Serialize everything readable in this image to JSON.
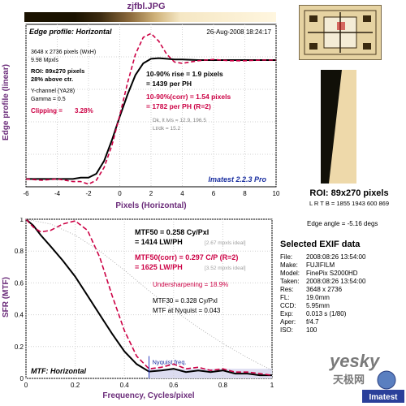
{
  "title": "zjfbl.JPG",
  "edge_profile": {
    "panel_title": "Edge profile: Horizontal",
    "timestamp": "26-Aug-2008 18:24:17",
    "info": [
      "3648 x 2736 pixels (WxH)",
      "9.98 Mpxls"
    ],
    "roi_info": [
      "ROI: 89x270 pixels",
      "28% above ctr."
    ],
    "channel_info": [
      "Y-channel  (YA28)",
      "Gamma = 0.5"
    ],
    "clipping_label": "Clipping =",
    "clipping_value": "3.28%",
    "rise_text": "10-90% rise = 1.9 pixels",
    "rise_per_ph": "= 1439 per PH",
    "corr_text": "10-90%(corr) = 1.54 pixels",
    "corr_per_ph": "= 1782 per PH   (R=2)",
    "dk_text": "Dk, lt lvls = 12.9, 196.5",
    "ltdk_text": "Lt/dk = 15.2",
    "version": "Imatest 2.2.3 Pro",
    "ylabel": "Edge profile (linear)",
    "xlabel": "Pixels (Horizontal)"
  },
  "mtf": {
    "panel_title": "MTF: Horizontal",
    "mtf50_text": "MTF50 = 0.258 Cy/Pxl",
    "mtf50_lw": "= 1414 LW/PH",
    "mtf50_ideal": "[2.67 mpxls ideal]",
    "mtf50c_text": "MTF50(corr) = 0.297 C/P   (R=2)",
    "mtf50c_lw": "= 1625 LW/PH",
    "mtf50c_ideal": "[3.52 mpxls ideal]",
    "undersharp": "Undersharpening = 18.9%",
    "mtf30": "MTF30 = 0.328 Cy/Pxl",
    "mtf_nyq": "MTF at Nyquist = 0.043",
    "nyquist_label": "Nyquist freq.",
    "ylabel": "SFR (MTF)",
    "xlabel": "Frequency, Cycles/pixel"
  },
  "roi": {
    "caption": "ROI: 89x270 pixels",
    "coords": "L R T B = 1855 1943  600 869"
  },
  "edge_angle": "Edge angle = -5.16 degs",
  "exif": {
    "title": "Selected EXIF data",
    "rows": [
      {
        "k": "File:",
        "v": "2008:08:26 13:54:00"
      },
      {
        "k": "Make:",
        "v": "FUJIFILM"
      },
      {
        "k": "Model:",
        "v": "FinePix S2000HD"
      },
      {
        "k": "Taken:",
        "v": "2008:08:26 13:54:00"
      },
      {
        "k": "Res:",
        "v": "3648 x 2736"
      },
      {
        "k": "FL:",
        "v": "19.0mm"
      },
      {
        "k": "CCD:",
        "v": "5.95mm"
      },
      {
        "k": "Exp:",
        "v": "0.013 s  (1/80)"
      },
      {
        "k": "Aper:",
        "v": "f/4.7"
      },
      {
        "k": "ISO:",
        "v": "100"
      }
    ]
  },
  "watermark": {
    "text": "yesky",
    "sub": "天极网",
    "brand": "Imatest"
  },
  "colors": {
    "accent": "#6b2c7a",
    "corr_red": "#cc0044",
    "plot_bg": "#ffffff",
    "nyq_fill": "#dcdcf0"
  },
  "chart_data": [
    {
      "type": "line",
      "title": "Edge profile: Horizontal",
      "xlabel": "Pixels (Horizontal)",
      "ylabel": "Edge profile (linear)",
      "xlim": [
        -6,
        10
      ],
      "ylim": [
        0,
        1.25
      ],
      "xticks": [
        -6,
        -4,
        -2,
        0,
        2,
        4,
        6,
        8,
        10
      ],
      "series": [
        {
          "x": [
            -6,
            -5,
            -4,
            -3,
            -2.5,
            -2,
            -1.5,
            -1,
            -0.5,
            0,
            0.5,
            1,
            1.5,
            2,
            2.5,
            3,
            3.5,
            4,
            5,
            6,
            7,
            8,
            9,
            10
          ],
          "y": [
            0.06,
            0.06,
            0.06,
            0.06,
            0.07,
            0.07,
            0.1,
            0.2,
            0.36,
            0.54,
            0.71,
            0.86,
            0.95,
            0.985,
            0.99,
            0.985,
            0.98,
            0.98,
            0.975,
            0.975,
            0.975,
            0.975,
            0.975,
            0.975
          ]
        },
        {
          "x": [
            -6,
            -5,
            -4,
            -3,
            -2.5,
            -2,
            -1.5,
            -1,
            -0.5,
            0,
            0.5,
            1,
            1.5,
            2,
            2.5,
            3,
            3.5,
            4,
            5,
            6,
            7,
            8,
            9,
            10
          ],
          "y": [
            0.06,
            0.05,
            0.06,
            0.04,
            0.04,
            0.02,
            0.05,
            0.15,
            0.32,
            0.55,
            0.8,
            1.02,
            1.15,
            1.18,
            1.12,
            1.02,
            0.96,
            0.95,
            0.97,
            0.98,
            0.97,
            0.97,
            0.975,
            0.975
          ]
        }
      ]
    },
    {
      "type": "line",
      "title": "MTF: Horizontal",
      "xlabel": "Frequency, Cycles/pixel",
      "ylabel": "SFR (MTF)",
      "xlim": [
        0,
        1
      ],
      "ylim": [
        0,
        1
      ],
      "xticks": [
        0,
        0.2,
        0.4,
        0.6,
        0.8,
        1
      ],
      "yticks": [
        0,
        0.2,
        0.4,
        0.6,
        0.8,
        1
      ],
      "series": [
        {
          "x": [
            0,
            0.03,
            0.06,
            0.1,
            0.15,
            0.2,
            0.25,
            0.3,
            0.35,
            0.4,
            0.45,
            0.5,
            0.55,
            0.6,
            0.65,
            0.7,
            0.75,
            0.8,
            0.85,
            0.9,
            0.95,
            1.0
          ],
          "y": [
            1.0,
            0.96,
            0.9,
            0.83,
            0.74,
            0.64,
            0.52,
            0.4,
            0.28,
            0.17,
            0.09,
            0.043,
            0.05,
            0.06,
            0.04,
            0.05,
            0.04,
            0.05,
            0.03,
            0.03,
            0.02,
            0.02
          ]
        },
        {
          "x": [
            0,
            0.03,
            0.06,
            0.1,
            0.15,
            0.2,
            0.25,
            0.3,
            0.35,
            0.4,
            0.45,
            0.5,
            0.55,
            0.6,
            0.65,
            0.7,
            0.75,
            0.8,
            0.85,
            0.9,
            0.95,
            1.0
          ],
          "y": [
            1.0,
            0.95,
            0.92,
            0.93,
            0.97,
            0.99,
            0.93,
            0.76,
            0.52,
            0.3,
            0.14,
            0.06,
            0.07,
            0.09,
            0.06,
            0.07,
            0.05,
            0.06,
            0.04,
            0.04,
            0.03,
            0.02
          ]
        },
        {
          "x": [
            0,
            0.1,
            0.2,
            0.3,
            0.4,
            0.5,
            0.6,
            0.7,
            0.8,
            0.9,
            1.0
          ],
          "y": [
            1.0,
            0.97,
            0.9,
            0.8,
            0.68,
            0.55,
            0.43,
            0.32,
            0.22,
            0.13,
            0.05
          ]
        }
      ],
      "nyquist_x": 0.5
    }
  ]
}
